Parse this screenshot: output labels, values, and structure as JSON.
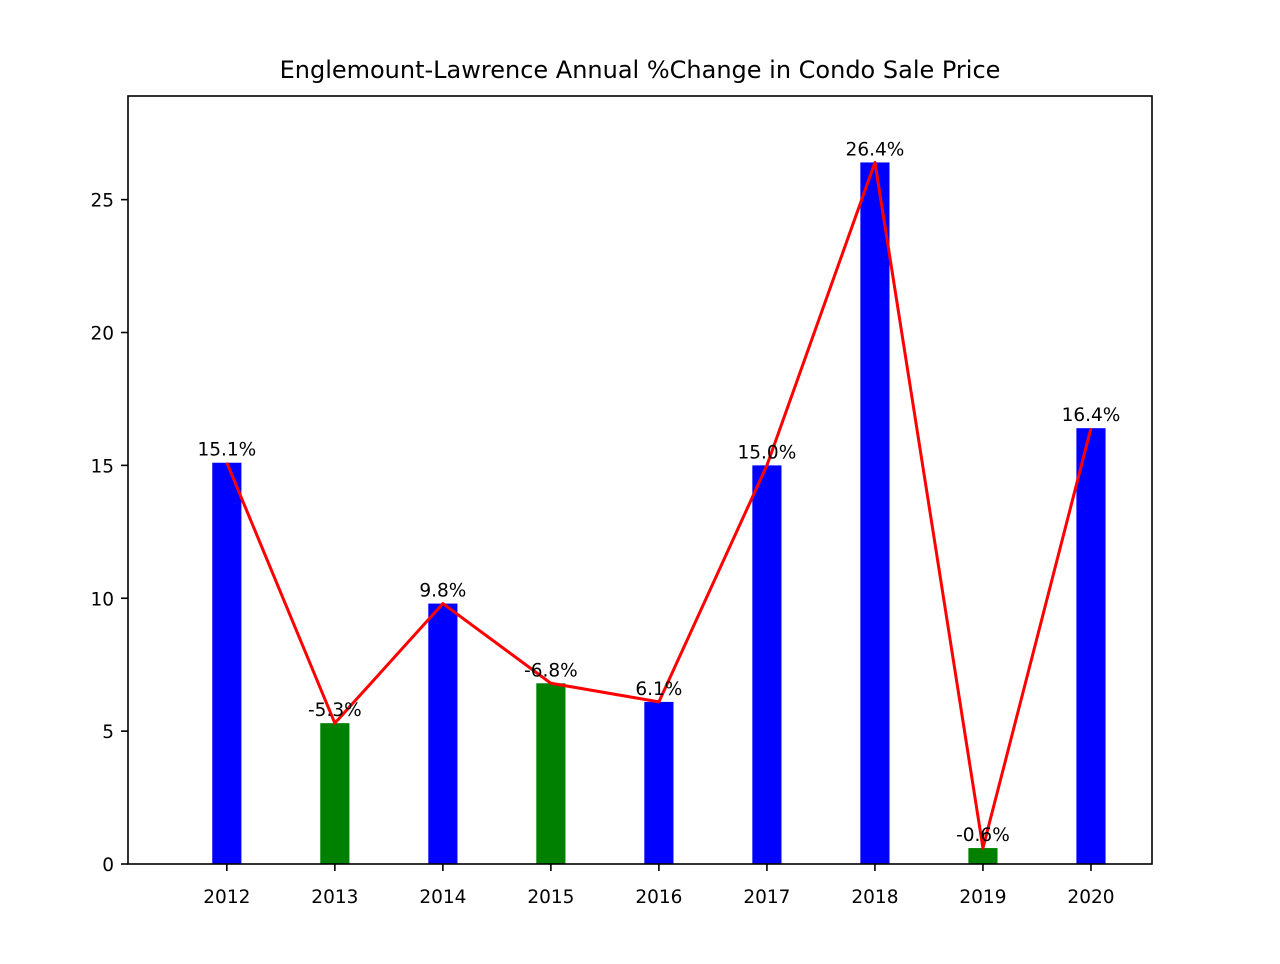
{
  "chart_data": {
    "type": "bar",
    "title": "Englemount-Lawrence Annual %Change in Condo Sale Price",
    "xlabel": "",
    "ylabel": "",
    "categories": [
      "2012",
      "2013",
      "2014",
      "2015",
      "2016",
      "2017",
      "2018",
      "2019",
      "2020"
    ],
    "values": [
      15.1,
      5.3,
      9.8,
      6.8,
      6.1,
      15.0,
      26.4,
      0.6,
      16.4
    ],
    "signed_change": [
      15.1,
      -5.3,
      9.8,
      -6.8,
      6.1,
      15.0,
      26.4,
      -0.6,
      16.4
    ],
    "value_labels": [
      "15.1%",
      "-5.3%",
      "9.8%",
      "-6.8%",
      "6.1%",
      "15.0%",
      "26.4%",
      "-0.6%",
      "16.4%"
    ],
    "yticks": [
      0,
      5,
      10,
      15,
      20,
      25
    ],
    "ylim": [
      0,
      28.9
    ],
    "grid": false,
    "legend": "none",
    "colors": {
      "increase_bar": "#0000ff",
      "decrease_bar": "#008000",
      "trend_line": "#ff0000",
      "axes": "#000000",
      "background": "#ffffff"
    },
    "line_overlay": {
      "type": "line",
      "values": [
        15.1,
        5.3,
        9.8,
        6.8,
        6.1,
        15.0,
        26.4,
        0.6,
        16.4
      ]
    }
  }
}
